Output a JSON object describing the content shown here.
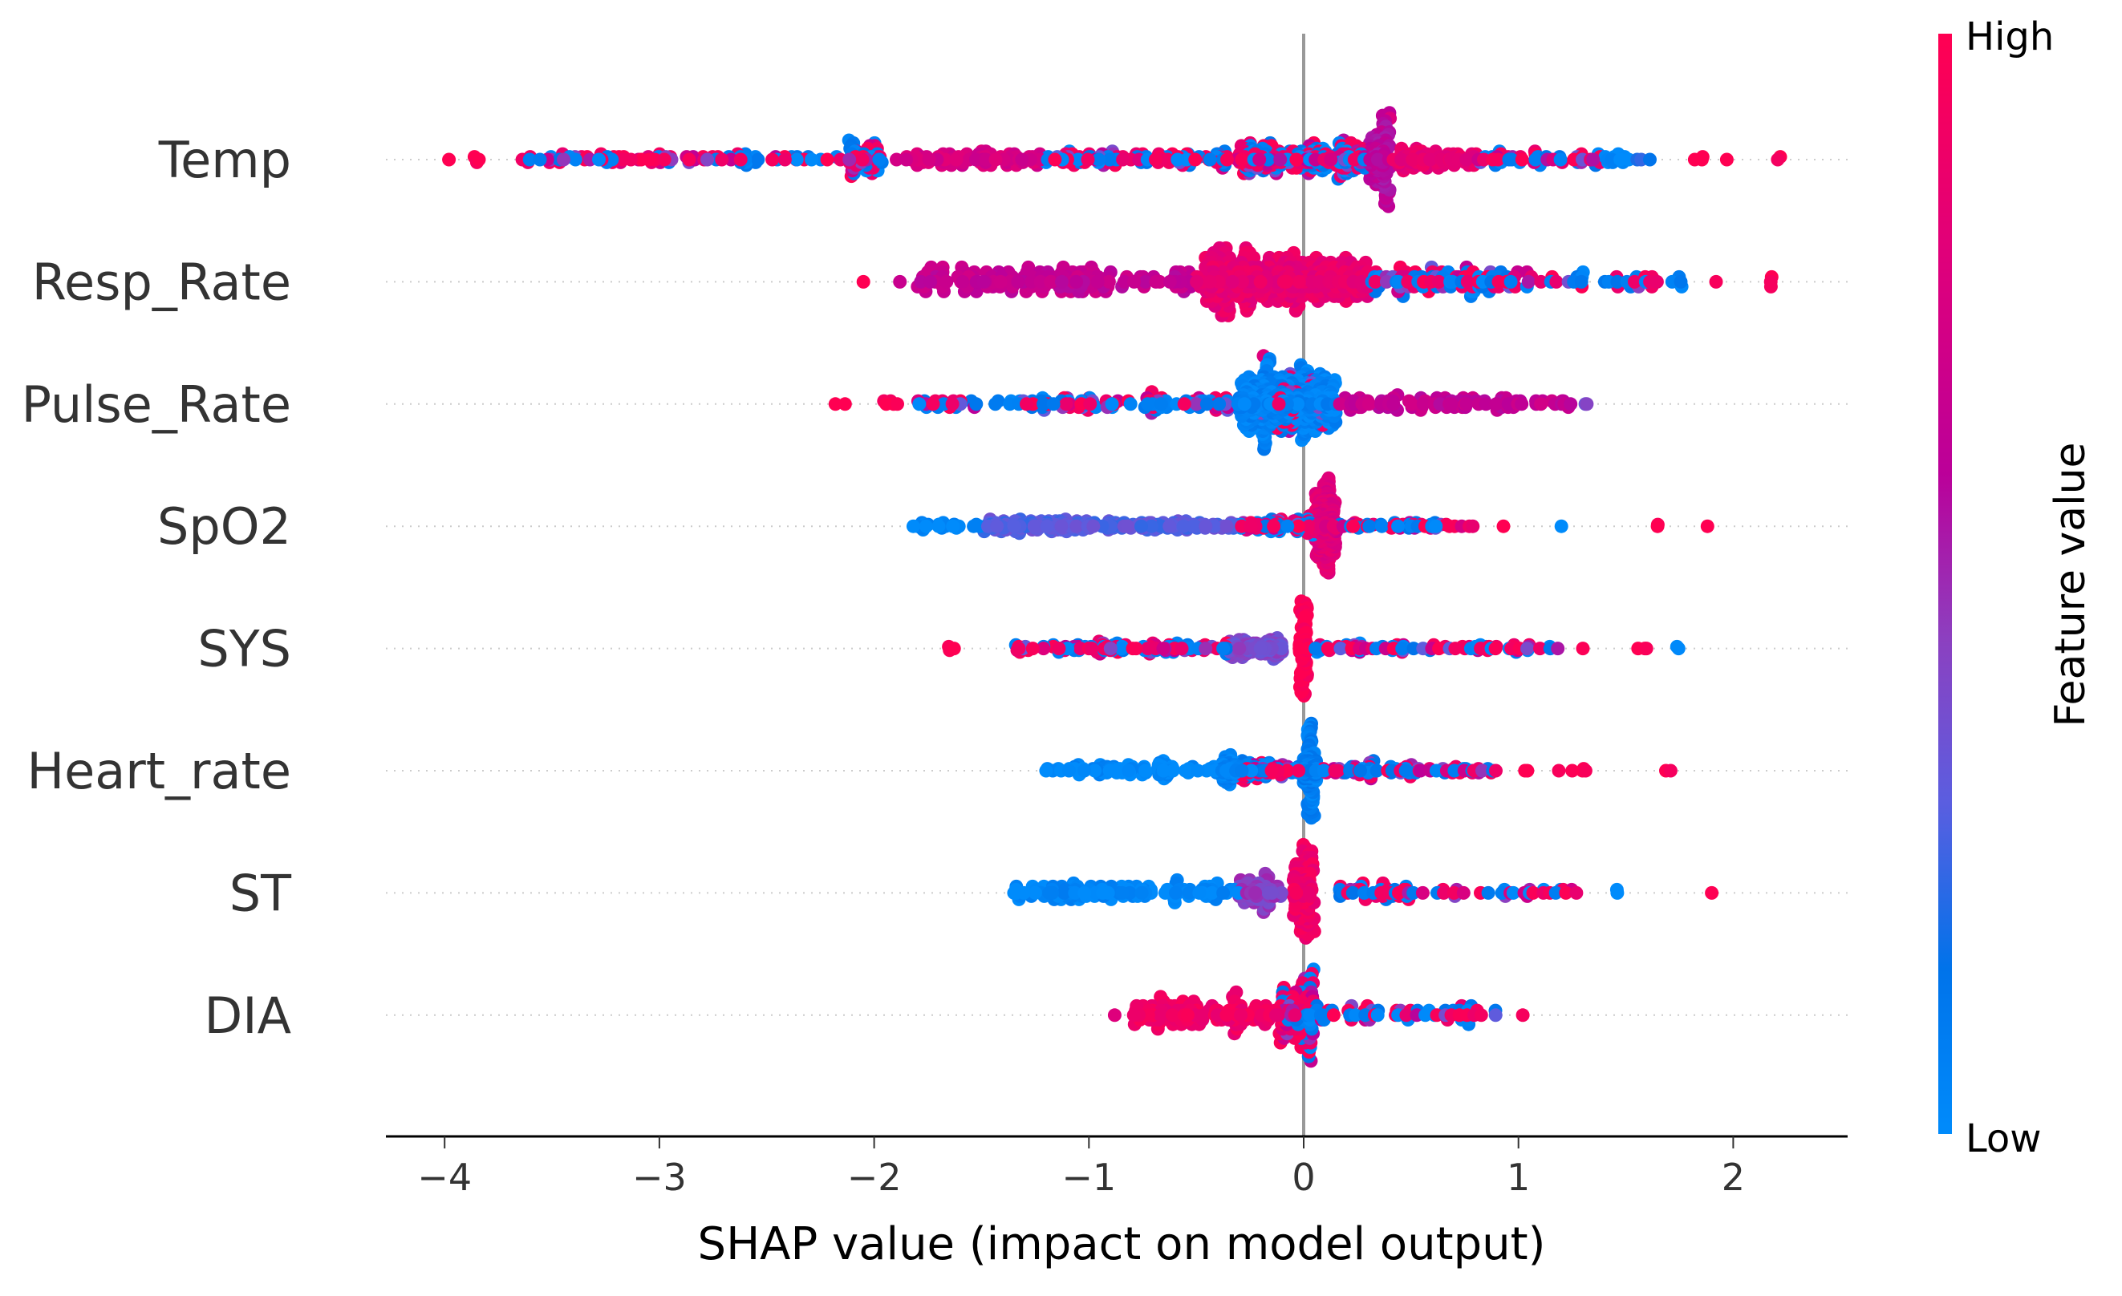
{
  "chart_data": {
    "type": "scatter",
    "subtype": "shap-beeswarm",
    "xlabel": "SHAP value (impact on model output)",
    "xlim": [
      -4.27,
      2.53
    ],
    "xticks": [
      -4,
      -3,
      -2,
      -1,
      0,
      1,
      2
    ],
    "xtick_labels": [
      "−4",
      "−3",
      "−2",
      "−1",
      "0",
      "1",
      "2"
    ],
    "colorbar": {
      "label": "Feature value",
      "high_label": "High",
      "low_label": "Low",
      "low_color": "#008bfb",
      "high_color": "#ff0052"
    },
    "segment_format": "[shap_min, shap_max, count, feature_value (0=low..1=high, -1=mixed)]",
    "features": [
      {
        "name": "Temp",
        "segments": [
          [
            -3.98,
            -3.98,
            1,
            1
          ],
          [
            -3.87,
            -3.84,
            3,
            1
          ],
          [
            -3.65,
            -2.15,
            90,
            -1
          ],
          [
            -2.12,
            -1.95,
            45,
            -1
          ],
          [
            -1.9,
            -1.2,
            70,
            0.75
          ],
          [
            -1.2,
            -0.3,
            90,
            -1
          ],
          [
            -0.3,
            0.3,
            160,
            -1
          ],
          [
            0.3,
            0.4,
            70,
            0.6
          ],
          [
            0.4,
            0.8,
            60,
            0.85
          ],
          [
            0.8,
            1.4,
            45,
            -1
          ],
          [
            1.4,
            1.52,
            12,
            0
          ],
          [
            1.55,
            1.62,
            3,
            0.2
          ],
          [
            1.82,
            1.86,
            3,
            1
          ],
          [
            1.97,
            1.97,
            1,
            1
          ],
          [
            2.2,
            2.22,
            2,
            1
          ]
        ]
      },
      {
        "name": "Resp_Rate",
        "segments": [
          [
            -2.05,
            -2.05,
            1,
            1
          ],
          [
            -1.88,
            -1.88,
            1,
            0.6
          ],
          [
            -1.8,
            -0.5,
            130,
            0.65
          ],
          [
            -0.5,
            0.3,
            220,
            0.85
          ],
          [
            0.3,
            1.0,
            80,
            -1
          ],
          [
            1.0,
            1.8,
            35,
            -1
          ],
          [
            1.92,
            1.92,
            1,
            1
          ],
          [
            2.15,
            2.2,
            3,
            1
          ]
        ]
      },
      {
        "name": "Pulse_Rate",
        "segments": [
          [
            -2.22,
            -2.1,
            2,
            1
          ],
          [
            -1.97,
            -1.88,
            5,
            1
          ],
          [
            -1.8,
            -0.3,
            110,
            -1
          ],
          [
            -0.3,
            0.15,
            220,
            0.05
          ],
          [
            -0.2,
            0.1,
            40,
            -1
          ],
          [
            0.15,
            1.25,
            85,
            0.65
          ],
          [
            1.3,
            1.32,
            2,
            0.4
          ]
        ]
      },
      {
        "name": "SpO2",
        "segments": [
          [
            -1.82,
            -1.5,
            22,
            0.02
          ],
          [
            -1.5,
            -0.3,
            160,
            0.3
          ],
          [
            -0.3,
            0.05,
            55,
            -1
          ],
          [
            0.05,
            0.15,
            130,
            0.8
          ],
          [
            0.15,
            0.8,
            45,
            -1
          ],
          [
            0.93,
            0.93,
            1,
            1
          ],
          [
            1.2,
            1.2,
            1,
            0
          ],
          [
            1.58,
            1.65,
            2,
            1
          ],
          [
            1.88,
            1.88,
            1,
            1
          ]
        ]
      },
      {
        "name": "SYS",
        "segments": [
          [
            -1.66,
            -1.6,
            3,
            1
          ],
          [
            -1.35,
            -0.35,
            95,
            -1
          ],
          [
            -0.35,
            -0.1,
            70,
            0.4
          ],
          [
            -0.02,
            0.02,
            65,
            1
          ],
          [
            0.05,
            1.2,
            75,
            -1
          ],
          [
            1.3,
            1.3,
            1,
            1
          ],
          [
            1.55,
            1.6,
            3,
            1
          ],
          [
            1.7,
            1.76,
            2,
            0
          ]
        ]
      },
      {
        "name": "Heart_rate",
        "segments": [
          [
            -1.2,
            -0.4,
            75,
            0.02
          ],
          [
            -0.38,
            -0.3,
            35,
            0.05
          ],
          [
            -0.3,
            0,
            55,
            -1
          ],
          [
            0,
            0.06,
            75,
            0.08
          ],
          [
            0.06,
            0.9,
            75,
            -1
          ],
          [
            1.02,
            1.45,
            7,
            1
          ],
          [
            1.68,
            1.78,
            2,
            1
          ]
        ]
      },
      {
        "name": "ST",
        "segments": [
          [
            -1.35,
            -0.3,
            105,
            0.03
          ],
          [
            -0.3,
            -0.1,
            45,
            0.45
          ],
          [
            -0.05,
            0.05,
            75,
            0.9
          ],
          [
            0.1,
            1.3,
            65,
            -1
          ],
          [
            1.45,
            1.5,
            2,
            0
          ],
          [
            1.9,
            1.9,
            1,
            1
          ]
        ]
      },
      {
        "name": "DIA",
        "segments": [
          [
            -0.88,
            -0.88,
            1,
            0.85
          ],
          [
            -0.8,
            -0.1,
            95,
            0.9
          ],
          [
            -0.1,
            0.05,
            65,
            -1
          ],
          [
            0.05,
            0.9,
            55,
            -1
          ],
          [
            1.02,
            1.02,
            1,
            1
          ]
        ]
      }
    ]
  }
}
